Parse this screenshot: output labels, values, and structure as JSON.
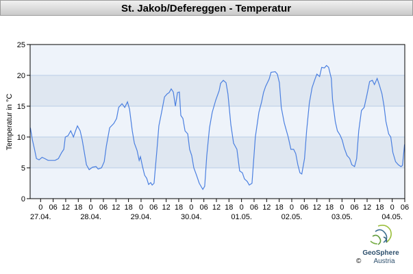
{
  "chart_data": {
    "type": "line",
    "title": "St. Jakob/Defereggen - Temperatur",
    "ylabel": "Temperatur in °C",
    "x": [
      -4.9,
      -3.9,
      -2.9,
      -2.0,
      -0.7,
      0.7,
      2.0,
      3.6,
      6.9,
      8.5,
      10.1,
      11.1,
      11.8,
      13.1,
      14.4,
      15.7,
      16.7,
      17.6,
      18.9,
      19.9,
      20.9,
      21.9,
      23.2,
      24.8,
      26.5,
      27.5,
      29.1,
      30.4,
      31.4,
      33.0,
      35.0,
      36.3,
      37.3,
      38.9,
      40.2,
      41.5,
      42.5,
      43.8,
      44.8,
      46.1,
      47.1,
      47.7,
      48.7,
      49.7,
      50.7,
      51.6,
      52.6,
      53.3,
      54.2,
      55.6,
      56.5,
      57.8,
      59.2,
      60.5,
      61.4,
      62.4,
      63.4,
      64.4,
      65.4,
      66.3,
      67.0,
      68.0,
      69.0,
      70.3,
      71.2,
      72.2,
      73.2,
      74.5,
      75.8,
      77.5,
      78.4,
      79.4,
      80.7,
      82.0,
      83.7,
      85.3,
      86.0,
      87.3,
      88.6,
      89.5,
      90.9,
      92.2,
      93.8,
      95.1,
      96.4,
      97.4,
      98.7,
      99.7,
      101.0,
      102.6,
      104.3,
      105.6,
      106.5,
      107.5,
      109.2,
      110.1,
      112.1,
      113.1,
      114.1,
      115.0,
      116.4,
      117.3,
      118.3,
      119.6,
      120.9,
      121.9,
      122.9,
      123.9,
      124.8,
      126.1,
      127.1,
      128.4,
      129.7,
      131.0,
      132.0,
      133.3,
      134.3,
      135.6,
      136.6,
      137.6,
      138.9,
      139.5,
      140.8,
      141.8,
      143.1,
      144.1,
      145.1,
      146.4,
      147.7,
      148.7,
      150.0,
      151.0,
      152.0,
      153.3,
      154.6,
      155.9,
      157.2,
      158.5,
      159.5,
      160.8,
      161.8,
      163.1,
      164.1,
      165.0,
      166.3,
      167.3,
      168.3,
      169.6,
      170.9,
      172.2,
      172.9,
      173.9
    ],
    "series": [
      {
        "name": "Temperatur",
        "color": "#4a7fe0",
        "values": [
          11.5,
          9.5,
          8,
          6.5,
          6.3,
          6.7,
          6.5,
          6.2,
          6.2,
          6.5,
          7.5,
          8,
          10,
          10.2,
          11,
          10,
          11,
          11.8,
          11,
          9.5,
          7.5,
          5.5,
          4.7,
          5.1,
          5.2,
          4.8,
          5,
          6,
          8.5,
          11.5,
          12.2,
          13,
          14.8,
          15.4,
          14.8,
          15.7,
          14.5,
          11,
          9,
          7.8,
          6.2,
          6.8,
          5.2,
          3.8,
          3.3,
          2.3,
          2.6,
          2.2,
          2.5,
          8,
          11.8,
          14,
          16.5,
          17,
          17.2,
          17.8,
          17.3,
          15,
          17.2,
          17.3,
          13.5,
          13,
          11,
          10.5,
          8,
          7,
          5,
          3.8,
          2.5,
          1.5,
          2,
          7,
          11.5,
          14,
          16,
          17.5,
          18.7,
          19.2,
          18.8,
          17,
          12,
          9,
          8,
          4.5,
          4.2,
          3.2,
          2.8,
          2.2,
          2.5,
          10,
          14,
          15.7,
          17.2,
          18.2,
          19.4,
          20.5,
          20.6,
          20.2,
          18.8,
          14.8,
          12.3,
          11.2,
          10,
          8,
          8,
          7.3,
          5.5,
          4.2,
          4,
          6.5,
          11,
          15.5,
          18,
          19.3,
          20.2,
          19.8,
          21.3,
          21.2,
          21.6,
          21.3,
          19.5,
          16,
          12.5,
          11,
          10.3,
          9.5,
          8.2,
          7,
          6.5,
          5.5,
          5.2,
          6.5,
          11,
          14.3,
          14.8,
          16.8,
          19,
          19.2,
          18.5,
          19.5,
          18.5,
          17,
          15,
          12.5,
          10.5,
          10,
          7.5,
          6,
          5.5,
          5.2,
          5.4,
          8.8
        ]
      }
    ],
    "xlim": [
      -5,
      174
    ],
    "xticks": [
      0,
      {
        "value": 6,
        "label": "06"
      },
      12,
      18,
      {
        "value": 24,
        "label": "0"
      },
      {
        "value": 30,
        "label": "06"
      },
      {
        "value": 36,
        "label": "12"
      },
      {
        "value": 42,
        "label": "18"
      },
      {
        "value": 48,
        "label": "0"
      },
      {
        "value": 54,
        "label": "06"
      },
      {
        "value": 60,
        "label": "12"
      },
      {
        "value": 66,
        "label": "18"
      },
      {
        "value": 72,
        "label": "0"
      },
      {
        "value": 78,
        "label": "06"
      },
      {
        "value": 84,
        "label": "12"
      },
      {
        "value": 90,
        "label": "18"
      },
      {
        "value": 96,
        "label": "0"
      },
      {
        "value": 102,
        "label": "06"
      },
      {
        "value": 108,
        "label": "12"
      },
      {
        "value": 114,
        "label": "18"
      },
      {
        "value": 120,
        "label": "0"
      },
      {
        "value": 126,
        "label": "06"
      },
      {
        "value": 132,
        "label": "12"
      },
      {
        "value": 138,
        "label": "18"
      },
      {
        "value": 144,
        "label": "0"
      },
      {
        "value": 150,
        "label": "06"
      },
      {
        "value": 156,
        "label": "12"
      },
      {
        "value": 162,
        "label": "18"
      },
      {
        "value": 168,
        "label": "0"
      },
      {
        "value": 174,
        "label": "06"
      }
    ],
    "dates": [
      {
        "value": 0,
        "label": "27.04."
      },
      {
        "value": 24,
        "label": "28.04."
      },
      {
        "value": 48,
        "label": "29.04."
      },
      {
        "value": 72,
        "label": "30.04."
      },
      {
        "value": 96,
        "label": "01.05."
      },
      {
        "value": 120,
        "label": "02.05."
      },
      {
        "value": 144,
        "label": "03.05."
      },
      {
        "value": 168,
        "label": "04.05."
      }
    ],
    "ylim": [
      0,
      25
    ],
    "yticks": [
      0,
      5,
      10,
      15,
      20,
      25
    ],
    "grid": true,
    "logo": {
      "name": "GeoSphere",
      "sub": "Austria",
      "copyright": "©"
    }
  }
}
